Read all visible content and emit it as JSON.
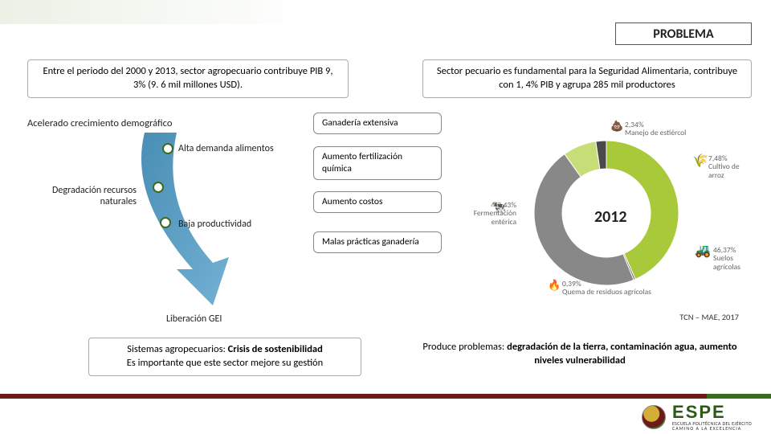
{
  "title": "PROBLEMA",
  "info_left": "Entre el periodo del 2000 y 2013, sector agropecuario contribuye PIB 9, 3% (9. 6 mil millones USD).",
  "info_right": "Sector pecuario es fundamental para la Seguridad Alimentaria, contribuye con 1, 4% PIB y agrupa 285 mil productores",
  "flow": {
    "acelerado": "Acelerado crecimiento demográfico",
    "alta_demanda": "Alta demanda alimentos",
    "degradacion": "Degradación recursos naturales",
    "baja_prod": "Baja productividad",
    "liberacion": "Liberación GEI",
    "arrow_color_start": "#2a7aa8",
    "arrow_color_end": "#5aa3cc",
    "bullet_color": "#3a6b1f"
  },
  "boxes": {
    "b1": "Ganadería extensiva",
    "b2": "Aumento fertilización química",
    "b3": "Aumento costos",
    "b4": "Malas prácticas ganadería"
  },
  "bottom_left_l1": "Sistemas agropecuarios: ",
  "bottom_left_b1": "Crisis de sostenibilidad",
  "bottom_left_l2": "Es importante que este sector mejore su gestión",
  "bottom_right_pre": "Produce problemas: ",
  "bottom_right_bold": "degradación de la tierra, contaminación agua, aumento niveles vulnerabilidad",
  "chart": {
    "type": "donut",
    "center_label": "2012",
    "inner_radius": 55,
    "outer_radius": 90,
    "background": "#ffffff",
    "slices": [
      {
        "label": "Fermentación entérica",
        "value": 43.43,
        "value_text": "43,43%",
        "color": "#a8c93a",
        "icon": "🐄"
      },
      {
        "label": "Quema de residuos agrícolas",
        "value": 0.39,
        "value_text": "0,39%",
        "color": "#6a6a6a",
        "icon": "🔥"
      },
      {
        "label": "Suelos agrícolas",
        "value": 46.37,
        "value_text": "46,37%",
        "color": "#888888",
        "icon": "🚜"
      },
      {
        "label": "Cultivo de arroz",
        "value": 7.48,
        "value_text": "7,48%",
        "color": "#c7dd77",
        "icon": "🌾"
      },
      {
        "label": "Manejo de estiércol",
        "value": 2.34,
        "value_text": "2,34%",
        "color": "#4a4a4a",
        "icon": "💩"
      }
    ]
  },
  "citation": "TCN – MAE, 2017",
  "logo": {
    "name": "ESPE",
    "sub1": "ESCUELA POLITÉCNICA DEL EJÉRCITO",
    "sub2": "CAMINO A LA EXCELENCIA"
  }
}
